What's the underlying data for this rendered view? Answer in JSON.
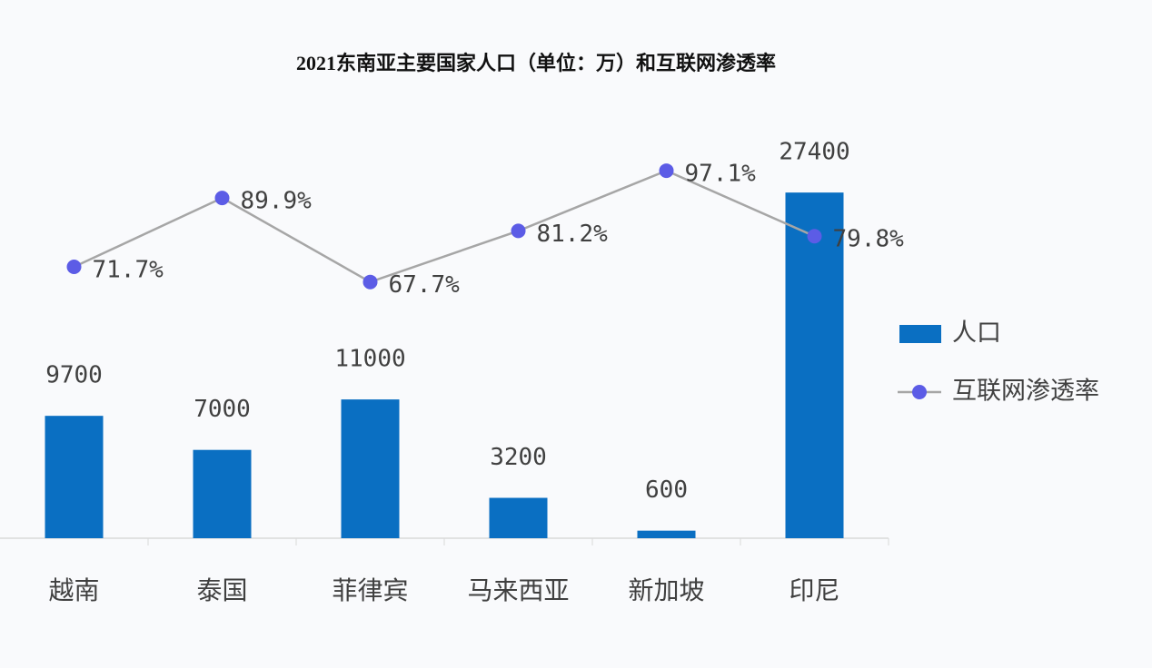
{
  "chart_data": {
    "type": "bar",
    "title": "2021东南亚主要国家人口（单位：万）和互联网渗透率",
    "categories": [
      "越南",
      "泰国",
      "菲律宾",
      "马来西亚",
      "新加坡",
      "印尼"
    ],
    "series": [
      {
        "name": "人口",
        "type": "bar",
        "color": "#0a6fc2",
        "values": [
          9700,
          7000,
          11000,
          3200,
          600,
          27400
        ]
      },
      {
        "name": "互联网渗透率",
        "type": "line",
        "axis": "y2",
        "color": "#a6a6a6",
        "marker_color": "#5c5ce6",
        "values": [
          71.7,
          89.9,
          67.7,
          81.2,
          97.1,
          79.8
        ],
        "value_labels": [
          "71.7%",
          "89.9%",
          "67.7%",
          "81.2%",
          "97.1%",
          "79.8%"
        ]
      }
    ],
    "ylim": [
      0,
      30000
    ],
    "y2lim": [
      0,
      100
    ],
    "legend": "right"
  }
}
